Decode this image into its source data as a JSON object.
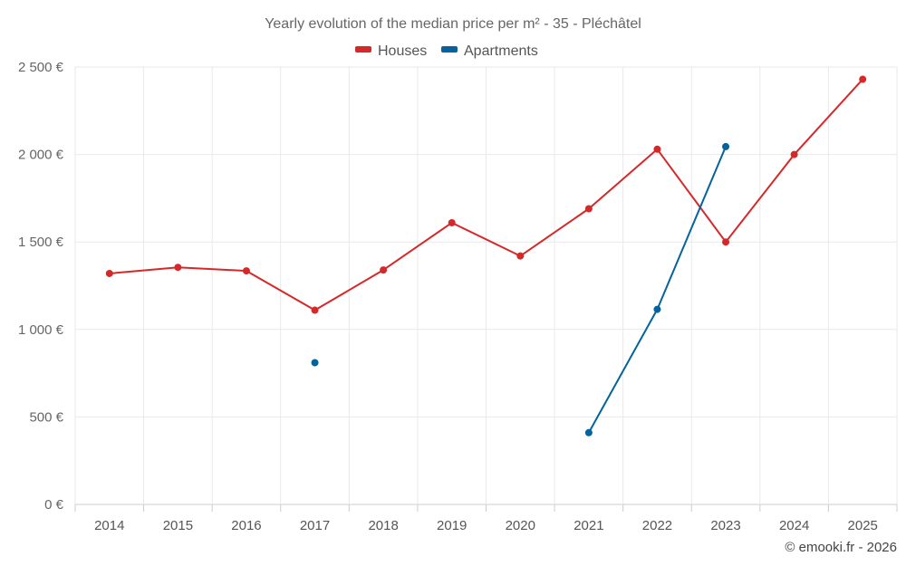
{
  "chart_data": {
    "type": "line",
    "title": "Yearly evolution of the median price per m² - 35 - Pléchâtel",
    "categories": [
      "2014",
      "2015",
      "2016",
      "2017",
      "2018",
      "2019",
      "2020",
      "2021",
      "2022",
      "2023",
      "2024",
      "2025"
    ],
    "series": [
      {
        "name": "Houses",
        "color": "#d62828",
        "values": [
          1320,
          1355,
          1335,
          1110,
          1340,
          1610,
          1420,
          1690,
          2030,
          1500,
          2000,
          2430
        ]
      },
      {
        "name": "Apartments",
        "color": "#04639b",
        "values": [
          null,
          null,
          null,
          810,
          null,
          null,
          null,
          410,
          1115,
          2045,
          null,
          null
        ]
      }
    ],
    "ylim": [
      0,
      2500
    ],
    "yticks": [
      0,
      500,
      1000,
      1500,
      2000,
      2500
    ],
    "ytick_labels": [
      "0 €",
      "500 €",
      "1 000 €",
      "1 500 €",
      "2 000 €",
      "2 500 €"
    ],
    "xlabel": "",
    "ylabel": "",
    "legend_position": "top-center",
    "grid": true
  },
  "credit": "© emooki.fr - 2026"
}
